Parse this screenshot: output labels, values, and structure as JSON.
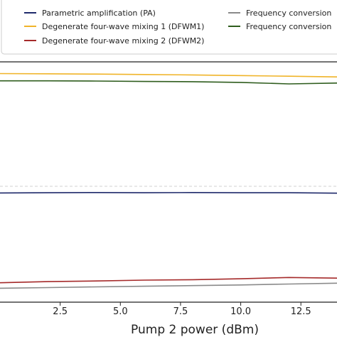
{
  "chart_data": {
    "type": "line",
    "title": "",
    "xlabel": "Pump 2 power (dBm)",
    "ylabel": "",
    "xlim": [
      0.0,
      14.0
    ],
    "ylim": [
      0.0,
      1.0
    ],
    "x_ticks": [
      "2.5",
      "5.0",
      "7.5",
      "10.0",
      "12.5"
    ],
    "x_tick_values": [
      2.5,
      5.0,
      7.5,
      10.0,
      12.5
    ],
    "grid": "horizontal dashed line",
    "legend_placement": "top",
    "series": [
      {
        "name": "Parametric amplification (PA)",
        "color": "#1f2a6b",
        "x": [
          0,
          2,
          4,
          6,
          8,
          10,
          12,
          14
        ],
        "y": [
          0.45,
          0.451,
          0.452,
          0.451,
          0.452,
          0.451,
          0.451,
          0.449
        ]
      },
      {
        "name": "Degenerate four-wave mixing 1 (DFWM1)",
        "color": "#f0b429",
        "x": [
          0,
          2,
          4,
          6,
          8,
          10,
          12,
          14
        ],
        "y": [
          0.995,
          0.994,
          0.993,
          0.991,
          0.989,
          0.986,
          0.983,
          0.98
        ]
      },
      {
        "name": "Degenerate four-wave mixing 2 (DFWM2)",
        "color": "#a52a2a",
        "x": [
          0,
          2,
          4,
          6,
          8,
          10,
          12,
          14
        ],
        "y": [
          0.04,
          0.045,
          0.048,
          0.052,
          0.054,
          0.058,
          0.064,
          0.061
        ]
      },
      {
        "name": "Frequency conversion",
        "color": "#8a8a8a",
        "x": [
          0,
          2,
          4,
          6,
          8,
          10,
          12,
          14
        ],
        "y": [
          0.015,
          0.018,
          0.021,
          0.024,
          0.027,
          0.03,
          0.034,
          0.038
        ]
      },
      {
        "name": "Frequency conversion",
        "color": "#2f5d1e",
        "x": [
          0,
          2,
          4,
          6,
          8,
          10,
          12,
          14
        ],
        "y": [
          0.962,
          0.962,
          0.961,
          0.959,
          0.958,
          0.955,
          0.948,
          0.952
        ]
      }
    ]
  }
}
